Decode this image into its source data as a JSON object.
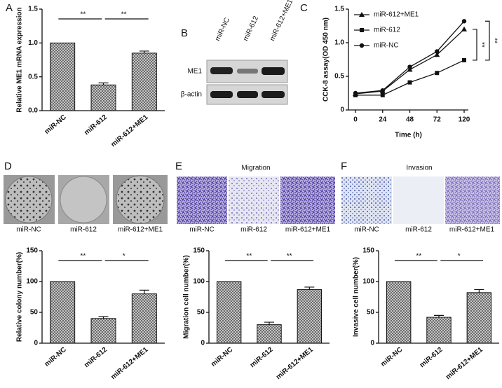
{
  "panel_labels": [
    "A",
    "B",
    "C",
    "D",
    "E",
    "F"
  ],
  "blot": {
    "lanes": [
      "miR-NC",
      "miR-612",
      "miR-612+ME1"
    ],
    "rows": [
      "ME1",
      "β-actin"
    ]
  },
  "colony": {
    "labels": [
      "miR-NC",
      "miR-612",
      "miR-612+ME1"
    ]
  },
  "migration": {
    "title": "Migration",
    "labels": [
      "miR-NC",
      "miR-612",
      "miR-612+ME1"
    ]
  },
  "invasion": {
    "title": "Invasion",
    "labels": [
      "miR-NC",
      "miR-612",
      "miR-612+ME1"
    ]
  },
  "chart_data": [
    {
      "type": "bar",
      "ylabel": "Relative ME1 mRNA expression",
      "categories": [
        "miR-NC",
        "miR-612",
        "miR-612+ME1"
      ],
      "values": [
        1.0,
        0.38,
        0.85
      ],
      "errors": [
        0,
        0.03,
        0.03
      ],
      "ylim": [
        0,
        1.5
      ],
      "yticks": [
        {
          "value": 0,
          "label": "0.0"
        },
        {
          "value": 0.5,
          "label": "0.5"
        },
        {
          "value": 1,
          "label": "1.0"
        },
        {
          "value": 1.5,
          "label": "1.5"
        }
      ],
      "annotations": [
        "**",
        "**"
      ]
    },
    {
      "type": "line",
      "ylabel": "CCK-8 assay(OD 450 nm)",
      "xlabel": "Time (h)",
      "categories": [
        "0",
        "24",
        "48",
        "72",
        "120"
      ],
      "series": [
        {
          "name": "miR-612+ME1",
          "marker": "triangle",
          "color": "#111",
          "values": [
            0.24,
            0.28,
            0.6,
            0.82,
            1.2
          ]
        },
        {
          "name": "miR-612",
          "marker": "square",
          "color": "#111",
          "values": [
            0.22,
            0.22,
            0.41,
            0.55,
            0.74
          ]
        },
        {
          "name": "miR-NC",
          "marker": "circle",
          "color": "#111",
          "values": [
            0.25,
            0.29,
            0.64,
            0.87,
            1.32
          ]
        }
      ],
      "ylim": [
        0,
        1.5
      ],
      "yticks": [
        0,
        0.5,
        {
          "value": 1,
          "label": "1.0"
        },
        1.5
      ],
      "annotations": [
        "**",
        "**"
      ]
    },
    {
      "type": "bar",
      "ylabel": "Relative colony number(%)",
      "categories": [
        "miR-NC",
        "miR-612",
        "miR-612+ME1"
      ],
      "values": [
        100,
        40,
        80
      ],
      "errors": [
        0,
        3,
        6
      ],
      "ylim": [
        0,
        150
      ],
      "yticks": [
        0,
        50,
        100,
        150
      ],
      "annotations": [
        "**",
        "*"
      ]
    },
    {
      "type": "bar",
      "ylabel": "Migration cell number(%)",
      "categories": [
        "miR-NC",
        "miR-612",
        "miR-612+ME1"
      ],
      "values": [
        100,
        30,
        87
      ],
      "errors": [
        0,
        4,
        4
      ],
      "ylim": [
        0,
        150
      ],
      "yticks": [
        0,
        50,
        100,
        150
      ],
      "annotations": [
        "**",
        "**"
      ]
    },
    {
      "type": "bar",
      "ylabel": "Invasive cell number(%)",
      "categories": [
        "miR-NC",
        "miR-612",
        "miR-612+ME1"
      ],
      "values": [
        100,
        42,
        82
      ],
      "errors": [
        0,
        3,
        5
      ],
      "ylim": [
        0,
        150
      ],
      "yticks": [
        0,
        50,
        100,
        150
      ],
      "annotations": [
        "**",
        "*"
      ]
    }
  ]
}
